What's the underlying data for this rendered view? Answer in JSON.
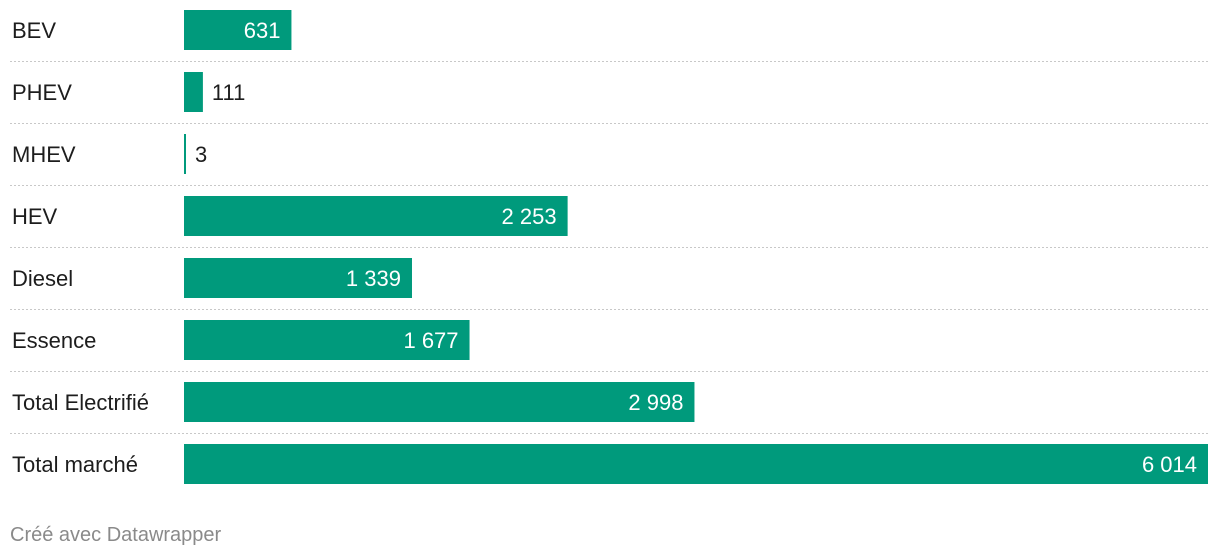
{
  "chart_data": {
    "type": "bar",
    "orientation": "horizontal",
    "categories": [
      "BEV",
      "PHEV",
      "MHEV",
      "HEV",
      "Diesel",
      "Essence",
      "Total Electrifié",
      "Total marché"
    ],
    "values": [
      631,
      111,
      3,
      2253,
      1339,
      1677,
      2998,
      6014
    ],
    "value_labels": [
      "631",
      "111",
      "3",
      "2 253",
      "1 339",
      "1 677",
      "2 998",
      "6 014"
    ],
    "title": "",
    "xlabel": "",
    "ylabel": "",
    "xlim": [
      0,
      6014
    ],
    "grid": false,
    "bar_color": "#009a7c"
  },
  "footer": {
    "credit": "Créé avec Datawrapper"
  }
}
